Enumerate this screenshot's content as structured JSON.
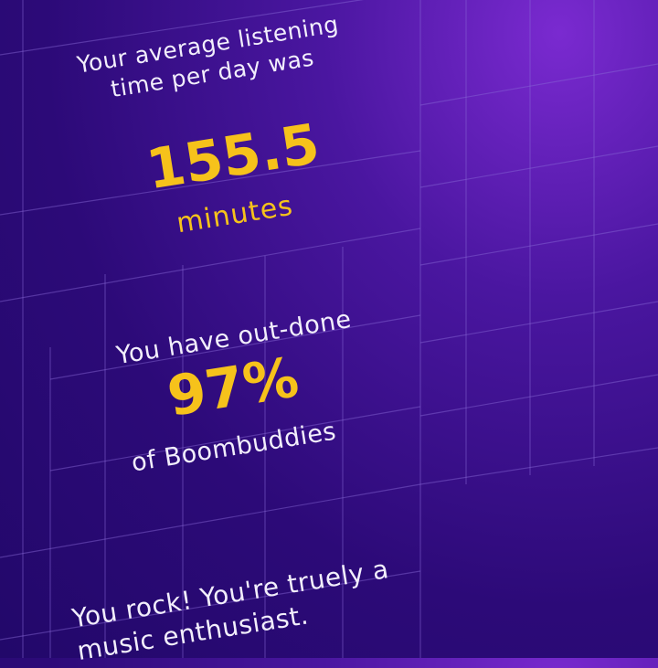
{
  "colors": {
    "accent": "#f6c21b",
    "background": "#2c0a78",
    "text": "#f2eefc"
  },
  "listening": {
    "intro": "Your average listening time per day was",
    "intro_line1": "Your average listening",
    "intro_line2": "time per day was",
    "value": "155.5",
    "unit": "minutes"
  },
  "ranking": {
    "prefix": "You have out-done",
    "value": "97%",
    "suffix": "of Boombuddies"
  },
  "closing": {
    "line1": "You rock! You're truely a",
    "line2": "music enthusiast."
  }
}
